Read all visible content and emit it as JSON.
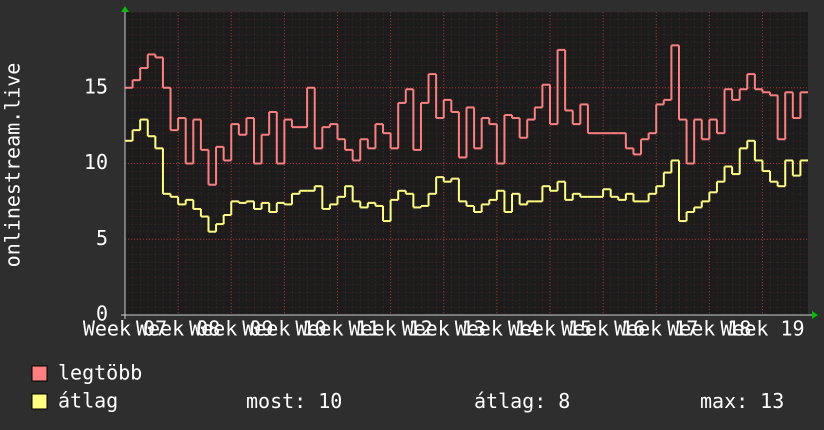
{
  "chart_data": {
    "type": "step-line",
    "y_label": "onlinestream.live",
    "x": [
      0,
      1,
      2,
      3,
      4,
      5,
      6,
      7,
      8,
      9,
      10,
      11,
      12,
      13,
      14,
      15,
      16,
      17,
      18,
      19,
      20,
      21,
      22,
      23,
      24,
      25,
      26,
      27,
      28,
      29,
      30,
      31,
      32,
      33,
      34,
      35,
      36,
      37,
      38,
      39,
      40,
      41,
      42,
      43,
      44,
      45,
      46,
      47,
      48,
      49,
      50,
      51,
      52,
      53,
      54,
      55,
      56,
      57,
      58,
      59,
      60,
      61,
      62,
      63,
      64,
      65,
      66,
      67,
      68,
      69,
      70,
      71,
      72,
      73,
      74,
      75,
      76,
      77,
      78,
      79,
      80,
      81,
      82,
      83,
      84,
      85,
      86,
      87,
      88,
      89
    ],
    "xlim": [
      0,
      90
    ],
    "xticks": [
      {
        "value": 0,
        "label": "Week 07"
      },
      {
        "value": 7,
        "label": "Week 08"
      },
      {
        "value": 14,
        "label": "Week 09"
      },
      {
        "value": 21,
        "label": "Week 10"
      },
      {
        "value": 28,
        "label": "Week 11"
      },
      {
        "value": 35,
        "label": "Week 12"
      },
      {
        "value": 42,
        "label": "Week 13"
      },
      {
        "value": 49,
        "label": "Week 14"
      },
      {
        "value": 56,
        "label": "Week 15"
      },
      {
        "value": 63,
        "label": "Week 16"
      },
      {
        "value": 70,
        "label": "Week 17"
      },
      {
        "value": 77,
        "label": "Week 18"
      },
      {
        "value": 84,
        "label": "Week 19"
      }
    ],
    "ylim": [
      0,
      20
    ],
    "yticks": [
      0,
      5,
      10,
      15
    ],
    "grid": true,
    "series": [
      {
        "name": "legtöbb",
        "color": "#ff7f7f",
        "values": [
          15.0,
          15.5,
          16.3,
          17.2,
          17.0,
          15.0,
          12.2,
          13.0,
          10.0,
          12.9,
          10.9,
          8.6,
          11.1,
          10.2,
          12.6,
          11.9,
          13.0,
          10.0,
          11.9,
          13.4,
          10.0,
          12.9,
          12.4,
          12.4,
          15.0,
          11.0,
          12.4,
          12.6,
          11.6,
          10.9,
          10.2,
          11.6,
          11.0,
          12.6,
          12.0,
          11.0,
          14.0,
          14.9,
          10.9,
          14.0,
          15.9,
          13.0,
          14.2,
          13.4,
          10.4,
          13.7,
          11.0,
          13.0,
          12.6,
          10.0,
          13.2,
          13.0,
          11.7,
          12.9,
          13.7,
          15.2,
          12.6,
          17.5,
          13.5,
          12.6,
          13.9,
          12.0,
          12.0,
          12.0,
          12.0,
          12.0,
          11.0,
          10.6,
          11.6,
          12.0,
          13.9,
          14.2,
          17.8,
          12.9,
          10.0,
          12.9,
          11.6,
          12.9,
          12.0,
          14.9,
          14.2,
          14.9,
          15.9,
          14.9,
          14.7,
          14.5,
          11.6,
          14.7,
          13.0,
          14.7
        ]
      },
      {
        "name": "átlag",
        "color": "#ffff80",
        "values": [
          11.5,
          12.2,
          12.9,
          11.8,
          11.0,
          8.0,
          7.8,
          7.3,
          7.6,
          7.0,
          6.5,
          5.5,
          6.0,
          6.6,
          7.5,
          7.4,
          7.5,
          7.0,
          7.4,
          6.8,
          7.4,
          7.3,
          8.0,
          8.2,
          8.2,
          8.5,
          7.0,
          7.3,
          7.8,
          8.5,
          7.5,
          7.1,
          7.4,
          7.2,
          6.2,
          7.6,
          8.2,
          8.0,
          7.1,
          7.2,
          8.0,
          9.1,
          8.8,
          9.0,
          7.5,
          7.2,
          6.8,
          7.3,
          7.6,
          8.2,
          6.8,
          8.0,
          7.3,
          7.5,
          7.5,
          8.5,
          8.2,
          8.8,
          7.6,
          8.0,
          7.8,
          7.8,
          7.8,
          8.3,
          7.8,
          7.6,
          8.0,
          7.5,
          7.5,
          8.0,
          8.5,
          9.4,
          10.2,
          6.2,
          6.8,
          7.1,
          7.5,
          8.1,
          8.8,
          9.8,
          9.3,
          11.0,
          11.5,
          10.2,
          9.5,
          8.8,
          8.5,
          10.2,
          9.2,
          10.2
        ]
      }
    ],
    "stats": [
      {
        "label": "most:",
        "value": 10
      },
      {
        "label": "átlag:",
        "value": 8
      },
      {
        "label": "max:",
        "value": 13
      }
    ]
  }
}
